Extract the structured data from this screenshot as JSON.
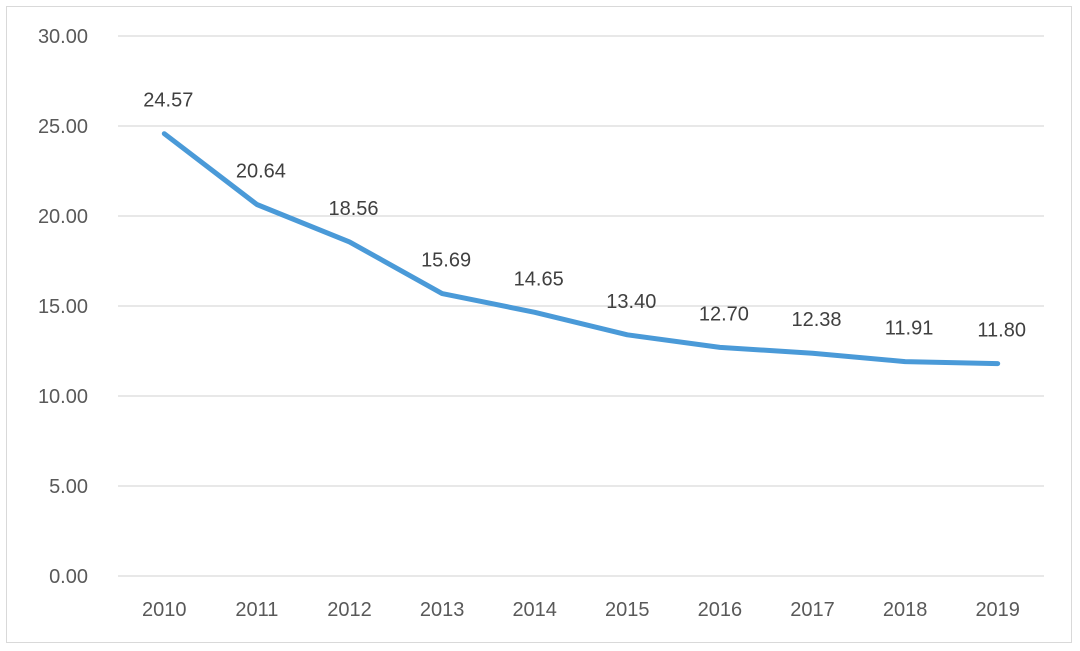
{
  "chart_data": {
    "type": "line",
    "title": "",
    "xlabel": "",
    "ylabel": "",
    "categories": [
      "2010",
      "2011",
      "2012",
      "2013",
      "2014",
      "2015",
      "2016",
      "2017",
      "2018",
      "2019"
    ],
    "series": [
      {
        "values": [
          24.57,
          20.64,
          18.56,
          15.69,
          14.65,
          13.4,
          12.7,
          12.38,
          11.91,
          11.8
        ],
        "color": "#4a9ad8"
      }
    ],
    "data_labels": [
      "24.57",
      "20.64",
      "18.56",
      "15.69",
      "14.65",
      "13.40",
      "12.70",
      "12.38",
      "11.91",
      "11.80"
    ],
    "ylim": [
      0,
      30
    ],
    "y_ticks": [
      0,
      5,
      10,
      15,
      20,
      25,
      30
    ],
    "y_tick_labels": [
      "0.00",
      "5.00",
      "10.00",
      "15.00",
      "20.00",
      "25.00",
      "30.00"
    ],
    "grid": true,
    "gridline_color": "#d9d9d9",
    "legend": "none"
  }
}
